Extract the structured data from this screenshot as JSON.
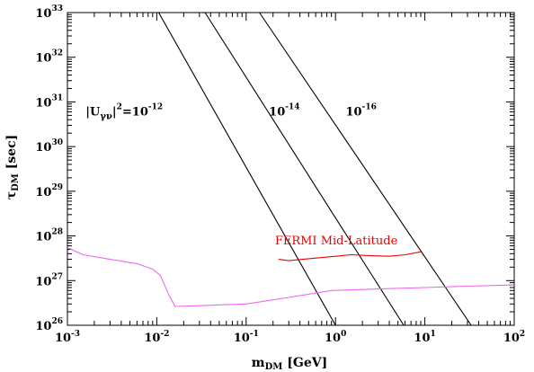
{
  "chart_data": {
    "type": "line",
    "x_scale": "log",
    "y_scale": "log",
    "xlim": [
      0.001,
      100
    ],
    "ylim": [
      1e+26,
      1e+33
    ],
    "xlabel": {
      "main": "m",
      "sub": "DM",
      "unit": " [GeV]"
    },
    "ylabel": {
      "main": "τ",
      "sub": "DM",
      "unit": " [sec]"
    },
    "x_ticks": [
      {
        "base": "10",
        "exp": "-3"
      },
      {
        "base": "10",
        "exp": "-2"
      },
      {
        "base": "10",
        "exp": "-1"
      },
      {
        "base": "10",
        "exp": "0"
      },
      {
        "base": "10",
        "exp": "1"
      },
      {
        "base": "10",
        "exp": "2"
      }
    ],
    "y_ticks": [
      {
        "base": "10",
        "exp": "26"
      },
      {
        "base": "10",
        "exp": "27"
      },
      {
        "base": "10",
        "exp": "28"
      },
      {
        "base": "10",
        "exp": "29"
      },
      {
        "base": "10",
        "exp": "30"
      },
      {
        "base": "10",
        "exp": "31"
      },
      {
        "base": "10",
        "exp": "32"
      },
      {
        "base": "10",
        "exp": "33"
      }
    ],
    "grid": false,
    "series": [
      {
        "color": "#000000",
        "points": [
          [
            0.0105,
            1e+33
          ],
          [
            1.0,
            1e+26
          ]
        ]
      },
      {
        "color": "#000000",
        "points": [
          [
            0.0347,
            1e+33
          ],
          [
            5.8,
            1e+26
          ]
        ]
      },
      {
        "color": "#000000",
        "points": [
          [
            0.141,
            1e+33
          ],
          [
            33,
            1e+26
          ]
        ]
      },
      {
        "name": "FERMI Mid-Latitude",
        "color": "#ee0000",
        "points": [
          [
            0.23,
            3e+27
          ],
          [
            0.3,
            2.8e+27
          ],
          [
            0.5,
            3.1e+27
          ],
          [
            1.0,
            3.5e+27
          ],
          [
            1.5,
            3.8e+27
          ],
          [
            2.5,
            3.6e+27
          ],
          [
            4.0,
            3.5e+27
          ],
          [
            6.0,
            3.8e+27
          ],
          [
            9.0,
            4.4e+27
          ]
        ]
      },
      {
        "color": "#ee66ee",
        "points": [
          [
            0.001,
            5.5e+27
          ],
          [
            0.0015,
            3.8e+27
          ],
          [
            0.003,
            3e+27
          ],
          [
            0.006,
            2.4e+27
          ],
          [
            0.009,
            1.8e+27
          ],
          [
            0.011,
            1.3e+27
          ],
          [
            0.0135,
            5e+26
          ],
          [
            0.016,
            2.65e+26
          ],
          [
            0.03,
            2.75e+26
          ],
          [
            0.1,
            3e+26
          ],
          [
            0.3,
            4.2e+26
          ],
          [
            0.9,
            6e+26
          ],
          [
            3.0,
            6.5e+26
          ],
          [
            10,
            7e+26
          ],
          [
            30,
            7.5e+26
          ],
          [
            100,
            8e+26
          ]
        ]
      }
    ],
    "annotations": [
      {
        "id": "u12",
        "kind": "mixing",
        "prefix": "|U",
        "sub": "γν",
        "sup": "2",
        "mid": "=10",
        "exp": "-12",
        "x": 0.0016,
        "y": 5e+30
      },
      {
        "id": "u14",
        "kind": "power",
        "base": "10",
        "exp": "-14",
        "x": 0.18,
        "y": 5e+30
      },
      {
        "id": "u16",
        "kind": "power",
        "base": "10",
        "exp": "-16",
        "x": 1.3,
        "y": 5e+30
      },
      {
        "id": "fermi",
        "kind": "text",
        "text": "FERMI Mid-Latitude",
        "x": 0.21,
        "y": 6.5e+27
      }
    ]
  }
}
